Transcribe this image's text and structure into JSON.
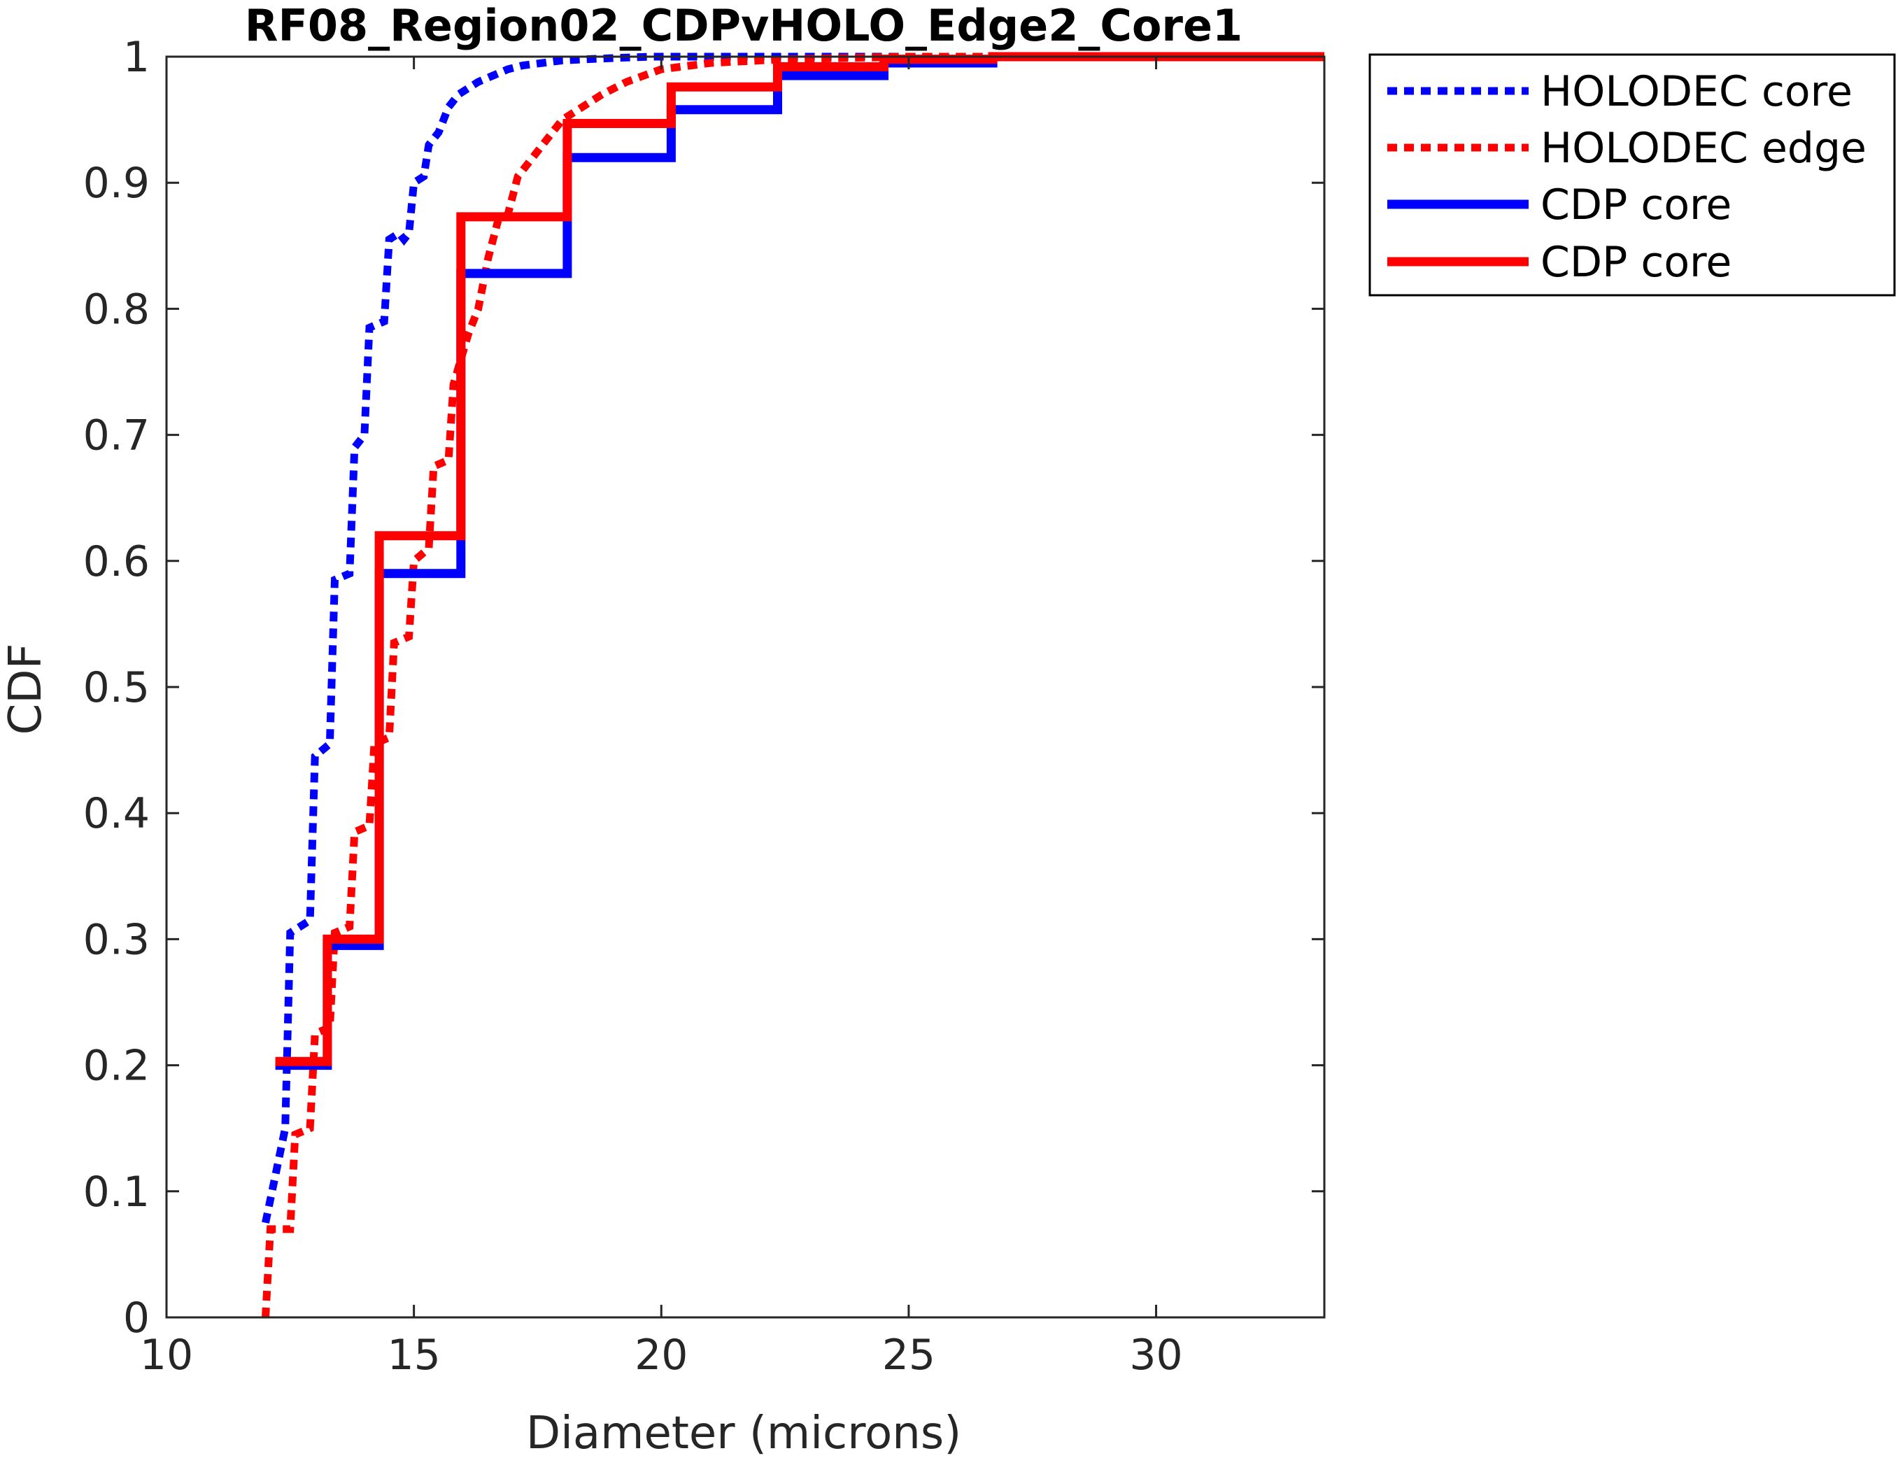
{
  "chart_data": {
    "type": "line",
    "title": "RF08_Region02_CDPvHOLO_Edge2_Core1",
    "xlabel": "Diameter (microns)",
    "ylabel": "CDF",
    "xlim": [
      10,
      33.4
    ],
    "ylim": [
      0,
      1
    ],
    "xticks": [
      10,
      15,
      20,
      25,
      30
    ],
    "xtick_labels": [
      "10",
      "15",
      "20",
      "25",
      "30"
    ],
    "yticks": [
      0,
      0.1,
      0.2,
      0.3,
      0.4,
      0.5,
      0.6,
      0.7,
      0.8,
      0.9,
      1
    ],
    "ytick_labels": [
      "0",
      "0.1",
      "0.2",
      "0.3",
      "0.4",
      "0.5",
      "0.6",
      "0.7",
      "0.8",
      "0.9",
      "1"
    ],
    "grid": false,
    "legend_position": "outside-top-right",
    "series": [
      {
        "name": "HOLODEC core",
        "color": "#0000ff",
        "style": "dotted",
        "x": [
          12.0,
          12.4,
          12.5,
          12.9,
          13.0,
          13.3,
          13.4,
          13.7,
          13.8,
          14.0,
          14.1,
          14.4,
          14.5,
          14.7,
          14.8,
          14.9,
          15.0,
          15.2,
          15.3,
          15.5,
          15.7,
          15.9,
          16.1,
          16.3,
          16.6,
          16.9,
          17.2,
          17.6,
          18.0,
          18.5,
          19.1,
          19.8,
          21.0,
          23.0,
          25.0,
          33.4
        ],
        "y": [
          0.075,
          0.15,
          0.305,
          0.315,
          0.445,
          0.455,
          0.585,
          0.59,
          0.69,
          0.7,
          0.785,
          0.79,
          0.855,
          0.86,
          0.855,
          0.86,
          0.9,
          0.905,
          0.93,
          0.94,
          0.96,
          0.97,
          0.975,
          0.98,
          0.985,
          0.99,
          0.993,
          0.995,
          0.997,
          0.998,
          0.999,
          1.0,
          1.0,
          1.0,
          1.0,
          1.0
        ]
      },
      {
        "name": "HOLODEC edge",
        "color": "#ff0000",
        "style": "dotted",
        "x": [
          12.0,
          12.1,
          12.5,
          12.6,
          12.9,
          13.0,
          13.3,
          13.4,
          13.7,
          13.8,
          14.1,
          14.2,
          14.5,
          14.6,
          14.9,
          15.0,
          15.3,
          15.4,
          15.7,
          15.8,
          16.1,
          16.3,
          16.5,
          16.7,
          16.9,
          17.1,
          17.4,
          17.7,
          18.0,
          18.4,
          18.8,
          19.3,
          20.0,
          21.0,
          22.5,
          25.0,
          33.4
        ],
        "y": [
          0.0,
          0.07,
          0.07,
          0.145,
          0.15,
          0.225,
          0.23,
          0.305,
          0.31,
          0.385,
          0.39,
          0.455,
          0.46,
          0.535,
          0.54,
          0.6,
          0.61,
          0.675,
          0.68,
          0.74,
          0.78,
          0.8,
          0.84,
          0.87,
          0.875,
          0.905,
          0.92,
          0.935,
          0.95,
          0.96,
          0.97,
          0.98,
          0.99,
          0.995,
          0.998,
          1.0,
          1.0
        ]
      },
      {
        "name": "CDP core",
        "color": "#0000ff",
        "style": "solid",
        "x": [
          12.2,
          13.25,
          13.25,
          14.3,
          14.3,
          15.95,
          15.95,
          18.1,
          18.1,
          20.2,
          20.2,
          22.35,
          22.35,
          24.5,
          24.5,
          26.7,
          26.7,
          28.8,
          28.8,
          33.4
        ],
        "y": [
          0.2,
          0.2,
          0.295,
          0.295,
          0.59,
          0.59,
          0.828,
          0.828,
          0.92,
          0.92,
          0.958,
          0.958,
          0.985,
          0.985,
          0.995,
          0.995,
          1.0,
          1.0,
          1.0,
          1.0
        ]
      },
      {
        "name": "CDP core",
        "color": "#ff0000",
        "style": "solid",
        "x": [
          12.2,
          13.25,
          13.25,
          14.3,
          14.3,
          15.95,
          15.95,
          18.1,
          18.1,
          20.2,
          20.2,
          22.35,
          22.35,
          24.5,
          24.5,
          26.7,
          26.7,
          28.8,
          28.8,
          33.4
        ],
        "y": [
          0.203,
          0.203,
          0.3,
          0.3,
          0.62,
          0.62,
          0.873,
          0.873,
          0.947,
          0.947,
          0.976,
          0.976,
          0.992,
          0.992,
          0.998,
          0.998,
          1.0,
          1.0,
          1.0,
          1.0
        ]
      }
    ]
  }
}
